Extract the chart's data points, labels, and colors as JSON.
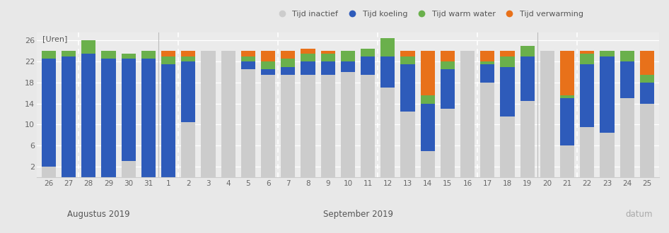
{
  "dates": [
    "26",
    "27",
    "28",
    "29",
    "30",
    "31",
    "1",
    "2",
    "3",
    "4",
    "5",
    "6",
    "7",
    "8",
    "9",
    "10",
    "11",
    "12",
    "13",
    "14",
    "15",
    "16",
    "17",
    "18",
    "19",
    "20",
    "21",
    "22",
    "23",
    "24",
    "25"
  ],
  "inactive": [
    2.0,
    0.0,
    0.0,
    0.0,
    3.0,
    0.0,
    0.0,
    10.5,
    24.0,
    24.0,
    20.5,
    19.5,
    19.5,
    19.5,
    19.5,
    20.0,
    19.5,
    17.0,
    12.5,
    5.0,
    13.0,
    24.0,
    18.0,
    11.5,
    14.5,
    24.0,
    6.0,
    9.5,
    8.5,
    15.0,
    14.0
  ],
  "koeling": [
    20.5,
    23.0,
    23.5,
    22.5,
    19.5,
    22.5,
    21.5,
    11.5,
    0.0,
    0.0,
    1.5,
    1.0,
    1.5,
    2.5,
    2.5,
    2.0,
    3.5,
    6.0,
    9.0,
    9.0,
    7.5,
    0.0,
    3.5,
    9.5,
    8.5,
    0.0,
    9.0,
    12.0,
    14.5,
    7.0,
    4.0
  ],
  "warm_water": [
    1.5,
    1.0,
    2.5,
    1.5,
    1.0,
    1.5,
    1.5,
    1.0,
    0.0,
    0.0,
    1.0,
    1.5,
    1.5,
    1.5,
    1.5,
    2.0,
    1.5,
    3.5,
    1.5,
    1.5,
    1.5,
    0.0,
    0.5,
    2.0,
    2.0,
    0.0,
    0.5,
    2.0,
    1.0,
    2.0,
    1.5
  ],
  "verwarming": [
    0.0,
    0.0,
    0.0,
    0.0,
    0.0,
    0.0,
    1.0,
    1.0,
    0.0,
    0.0,
    1.0,
    2.0,
    1.5,
    1.0,
    0.5,
    0.0,
    0.0,
    0.0,
    1.0,
    8.5,
    2.0,
    0.0,
    2.0,
    1.0,
    0.0,
    0.0,
    8.5,
    0.5,
    0.0,
    0.0,
    4.5
  ],
  "color_inactive": "#cccccc",
  "color_koeling": "#2e5bba",
  "color_warm_water": "#6ab04c",
  "color_verwarming": "#e8711a",
  "bg_color": "#e8e8e8",
  "plot_bg": "#ebebeb",
  "ylim": [
    0,
    27.5
  ],
  "yticks": [
    2,
    6,
    10,
    14,
    18,
    22,
    26
  ],
  "title_y": "[Uren]",
  "xlabel_right": "datum",
  "legend_labels": [
    "Tijd inactief",
    "Tijd koeling",
    "Tijd warm water",
    "Tijd verwarming"
  ],
  "augustus_label": "Augustus 2019",
  "september_label": "September 2019",
  "dashed_vlines": [
    1.5,
    6.5,
    11.5,
    16.5,
    21.5,
    26.5
  ],
  "aug_sep_separator": 5.5,
  "sep20_separator": 24.5
}
